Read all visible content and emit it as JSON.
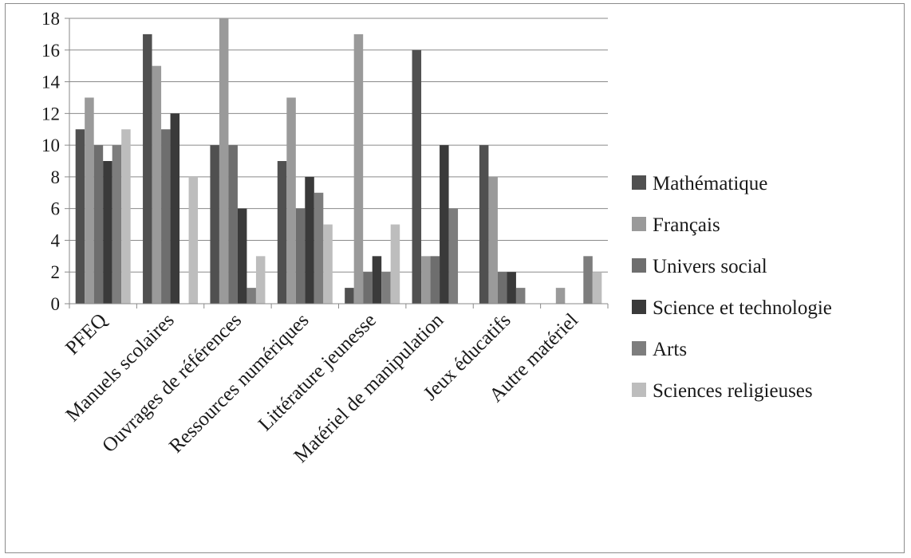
{
  "chart_data": {
    "type": "bar",
    "categories": [
      "PFEQ",
      "Manuels scolaires",
      "Ouvrages de références",
      "Ressources numériques",
      "Littérature jeunesse",
      "Matériel de manipulation",
      "Jeux éducatifs",
      "Autre matériel"
    ],
    "series": [
      {
        "name": "Mathématique",
        "color": "#505050",
        "values": [
          11,
          17,
          10,
          9,
          1,
          16,
          10,
          0
        ]
      },
      {
        "name": "Français",
        "color": "#9a9a9a",
        "values": [
          13,
          15,
          18,
          13,
          17,
          3,
          8,
          1
        ]
      },
      {
        "name": "Univers social",
        "color": "#6e6e6e",
        "values": [
          10,
          11,
          10,
          6,
          2,
          3,
          2,
          0
        ]
      },
      {
        "name": "Science et technologie",
        "color": "#3a3a3a",
        "values": [
          9,
          12,
          6,
          8,
          3,
          10,
          2,
          0
        ]
      },
      {
        "name": "Arts",
        "color": "#7d7d7d",
        "values": [
          10,
          0,
          1,
          7,
          2,
          6,
          1,
          3
        ]
      },
      {
        "name": "Sciences religieuses",
        "color": "#bdbdbd",
        "values": [
          11,
          8,
          3,
          5,
          5,
          0,
          0,
          2
        ]
      }
    ],
    "ylim": [
      0,
      18
    ],
    "yticks": [
      "0",
      "2",
      "4",
      "6",
      "8",
      "10",
      "12",
      "14",
      "16",
      "18"
    ],
    "grid": true,
    "legend_position": "right",
    "title": "",
    "xlabel": "",
    "ylabel": ""
  }
}
